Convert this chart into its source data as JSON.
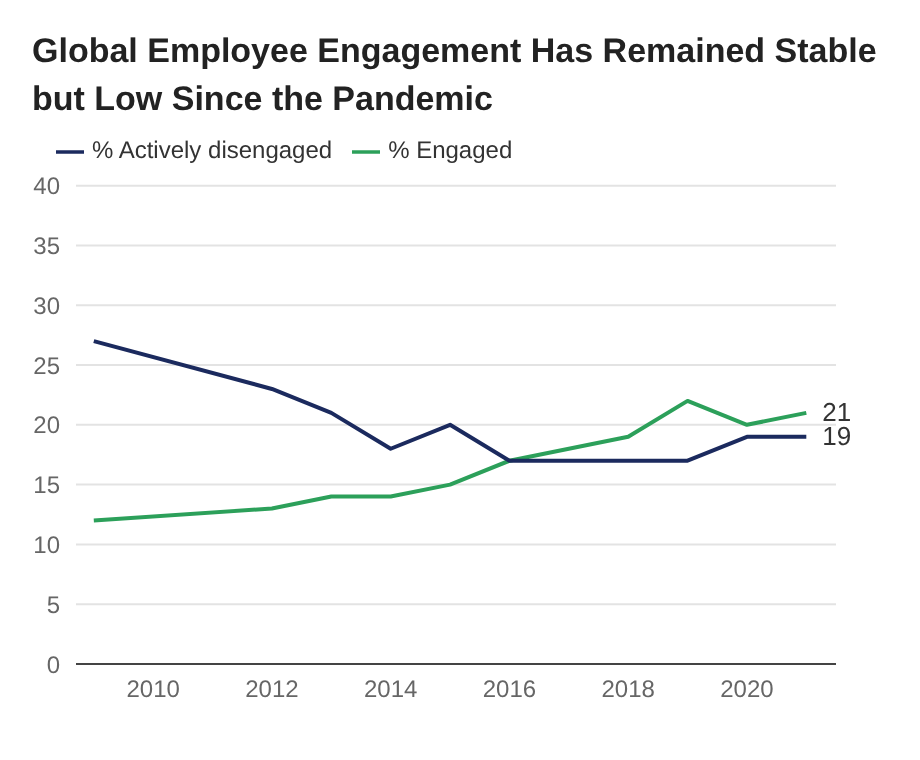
{
  "chart_data": {
    "type": "line",
    "title": "Global Employee Engagement Has Remained Stable but Low Since the Pandemic",
    "x": [
      2009,
      2012,
      2013,
      2014,
      2015,
      2016,
      2018,
      2019,
      2020,
      2021
    ],
    "series": [
      {
        "name": "% Engaged",
        "color": "#2ca05a",
        "values": [
          12,
          13,
          14,
          14,
          15,
          17,
          19,
          22,
          20,
          21
        ],
        "value_labels": [
          null,
          null,
          null,
          null,
          null,
          null,
          null,
          null,
          null,
          "21"
        ]
      },
      {
        "name": "% Actively disengaged",
        "color": "#1b2a5e",
        "values": [
          27,
          23,
          21,
          18,
          20,
          17,
          17,
          17,
          19,
          19
        ],
        "value_labels": [
          null,
          null,
          null,
          null,
          null,
          null,
          null,
          null,
          null,
          "19"
        ]
      }
    ],
    "xlim": [
      2008.7,
      2021.5
    ],
    "xticks": [
      2010,
      2012,
      2014,
      2016,
      2018,
      2020
    ],
    "ylim": [
      0,
      40
    ],
    "yticks": [
      0,
      5,
      10,
      15,
      20,
      25,
      30,
      35,
      40
    ],
    "grid": "y",
    "legend": "top left",
    "marker": "none",
    "line_style": "solid"
  }
}
